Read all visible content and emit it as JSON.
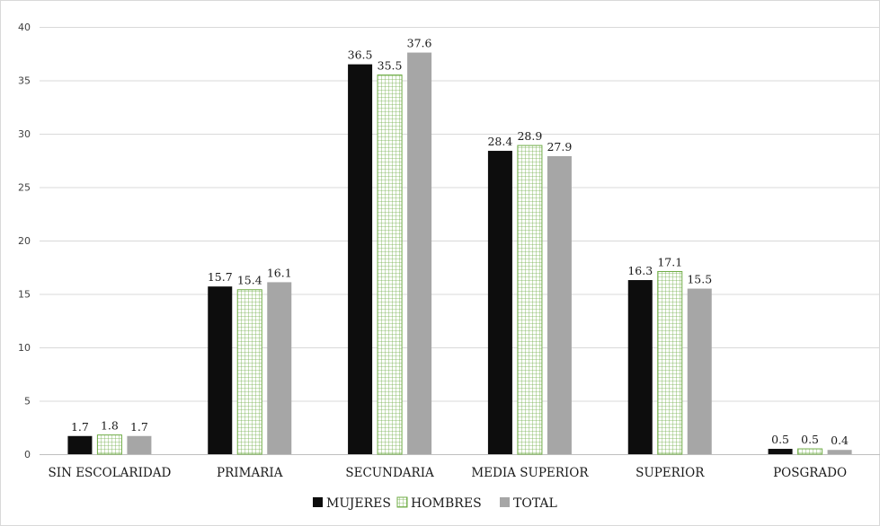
{
  "chart_data": {
    "type": "bar",
    "categories": [
      "SIN ESCOLARIDAD",
      "PRIMARIA",
      "SECUNDARIA",
      "MEDIA SUPERIOR",
      "SUPERIOR",
      "POSGRADO"
    ],
    "series": [
      {
        "name": "MUJERES",
        "values": [
          1.7,
          15.7,
          36.5,
          28.4,
          16.3,
          0.5
        ],
        "color": "#0d0d0d",
        "pattern": "solid"
      },
      {
        "name": "HOMBRES",
        "values": [
          1.8,
          15.4,
          35.5,
          28.9,
          17.1,
          0.5
        ],
        "color": "#70ad47",
        "pattern": "grid"
      },
      {
        "name": "TOTAL",
        "values": [
          1.7,
          16.1,
          37.6,
          27.9,
          15.5,
          0.4
        ],
        "color": "#a6a6a6",
        "pattern": "solid"
      }
    ],
    "title": "",
    "xlabel": "",
    "ylabel": "",
    "ylim": [
      0,
      40
    ],
    "yticks": [
      0,
      5,
      10,
      15,
      20,
      25,
      30,
      35,
      40
    ],
    "grid": true,
    "legend_position": "bottom",
    "data_labels": true
  }
}
